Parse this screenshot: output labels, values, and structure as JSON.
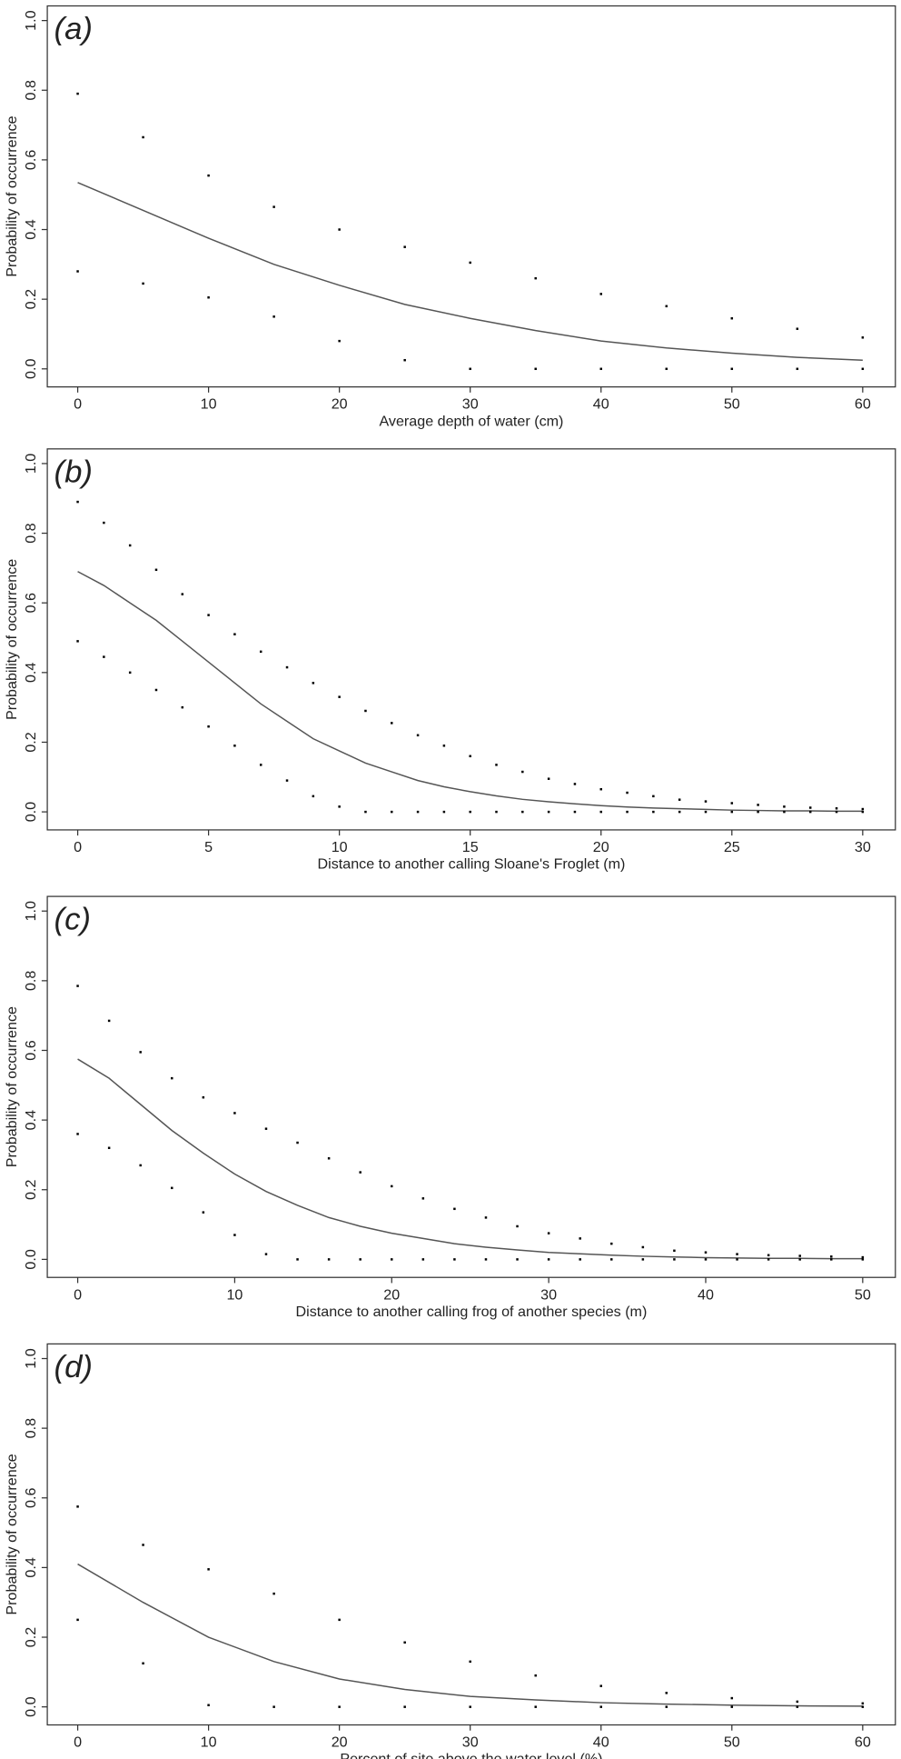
{
  "chart_data": [
    {
      "type": "line",
      "panel_label": "(a)",
      "x_label": "Average depth of water (cm)",
      "y_label": "Probability of occurrence",
      "x": [
        0,
        5,
        10,
        15,
        20,
        25,
        30,
        35,
        40,
        45,
        50,
        55,
        60
      ],
      "series": [
        {
          "style": "line",
          "color": "#555555",
          "values": [
            0.535,
            0.455,
            0.375,
            0.3,
            0.24,
            0.185,
            0.145,
            0.11,
            0.08,
            0.06,
            0.045,
            0.033,
            0.025
          ]
        },
        {
          "style": "points",
          "color": "#000000",
          "values": [
            0.79,
            0.665,
            0.555,
            0.465,
            0.4,
            0.35,
            0.305,
            0.26,
            0.215,
            0.18,
            0.145,
            0.115,
            0.09
          ]
        },
        {
          "style": "points",
          "color": "#000000",
          "values": [
            0.28,
            0.245,
            0.205,
            0.15,
            0.08,
            0.025,
            0,
            0,
            0,
            0,
            0,
            0,
            0
          ]
        }
      ],
      "xlim": [
        0,
        60
      ],
      "xticks": [
        0,
        10,
        20,
        30,
        40,
        50,
        60
      ],
      "ylim": [
        0,
        1
      ],
      "yticks": [
        {
          "value": 0,
          "label": "0.0"
        },
        0.2,
        0.4,
        0.6,
        0.8,
        {
          "value": 1,
          "label": "1.0"
        }
      ]
    },
    {
      "type": "line",
      "panel_label": "(b)",
      "x_label": "Distance to another calling Sloane's Froglet (m)",
      "y_label": "Probability of occurrence",
      "x": [
        0,
        1,
        2,
        3,
        4,
        5,
        6,
        7,
        8,
        9,
        10,
        11,
        12,
        13,
        14,
        15,
        16,
        17,
        18,
        19,
        20,
        21,
        22,
        23,
        24,
        25,
        26,
        27,
        28,
        29,
        30
      ],
      "series": [
        {
          "style": "line",
          "color": "#555555",
          "values": [
            0.69,
            0.65,
            0.6,
            0.55,
            0.49,
            0.43,
            0.37,
            0.31,
            0.26,
            0.21,
            0.175,
            0.14,
            0.115,
            0.09,
            0.072,
            0.058,
            0.046,
            0.036,
            0.029,
            0.023,
            0.018,
            0.014,
            0.011,
            0.009,
            0.007,
            0.005,
            0.004,
            0.003,
            0.003,
            0.002,
            0.002
          ]
        },
        {
          "style": "points",
          "color": "#000000",
          "values": [
            0.89,
            0.83,
            0.765,
            0.695,
            0.625,
            0.565,
            0.51,
            0.46,
            0.415,
            0.37,
            0.33,
            0.29,
            0.255,
            0.22,
            0.19,
            0.16,
            0.135,
            0.115,
            0.095,
            0.08,
            0.065,
            0.055,
            0.045,
            0.035,
            0.03,
            0.025,
            0.02,
            0.015,
            0.012,
            0.01,
            0.008
          ]
        },
        {
          "style": "points",
          "color": "#000000",
          "values": [
            0.49,
            0.445,
            0.4,
            0.35,
            0.3,
            0.245,
            0.19,
            0.135,
            0.09,
            0.045,
            0.015,
            0,
            0,
            0,
            0,
            0,
            0,
            0,
            0,
            0,
            0,
            0,
            0,
            0,
            0,
            0,
            0,
            0,
            0,
            0,
            0
          ]
        }
      ],
      "xlim": [
        0,
        30
      ],
      "xticks": [
        0,
        5,
        10,
        15,
        20,
        25,
        30
      ],
      "ylim": [
        0,
        1
      ],
      "yticks": [
        {
          "value": 0,
          "label": "0.0"
        },
        0.2,
        0.4,
        0.6,
        0.8,
        {
          "value": 1,
          "label": "1.0"
        }
      ]
    },
    {
      "type": "line",
      "panel_label": "(c)",
      "x_label": "Distance to another calling frog of another species (m)",
      "y_label": "Probability of occurrence",
      "x": [
        0,
        2,
        4,
        6,
        8,
        10,
        12,
        14,
        16,
        18,
        20,
        22,
        24,
        26,
        28,
        30,
        32,
        34,
        36,
        38,
        40,
        42,
        44,
        46,
        48,
        50
      ],
      "series": [
        {
          "style": "line",
          "color": "#555555",
          "values": [
            0.575,
            0.52,
            0.445,
            0.37,
            0.305,
            0.245,
            0.195,
            0.155,
            0.12,
            0.095,
            0.075,
            0.06,
            0.045,
            0.035,
            0.027,
            0.02,
            0.016,
            0.012,
            0.009,
            0.007,
            0.005,
            0.004,
            0.003,
            0.003,
            0.002,
            0.002
          ]
        },
        {
          "style": "points",
          "color": "#000000",
          "values": [
            0.785,
            0.685,
            0.595,
            0.52,
            0.465,
            0.42,
            0.375,
            0.335,
            0.29,
            0.25,
            0.21,
            0.175,
            0.145,
            0.12,
            0.095,
            0.075,
            0.06,
            0.045,
            0.035,
            0.025,
            0.02,
            0.015,
            0.012,
            0.01,
            0.008,
            0.006
          ]
        },
        {
          "style": "points",
          "color": "#000000",
          "values": [
            0.36,
            0.32,
            0.27,
            0.205,
            0.135,
            0.07,
            0.015,
            0,
            0,
            0,
            0,
            0,
            0,
            0,
            0,
            0,
            0,
            0,
            0,
            0,
            0,
            0,
            0,
            0,
            0,
            0
          ]
        }
      ],
      "xlim": [
        0,
        50
      ],
      "xticks": [
        0,
        10,
        20,
        30,
        40,
        50
      ],
      "ylim": [
        0,
        1
      ],
      "yticks": [
        {
          "value": 0,
          "label": "0.0"
        },
        0.2,
        0.4,
        0.6,
        0.8,
        {
          "value": 1,
          "label": "1.0"
        }
      ]
    },
    {
      "type": "line",
      "panel_label": "(d)",
      "x_label": "Percent of site above the water level (%)",
      "y_label": "Probability of occurrence",
      "x": [
        0,
        5,
        10,
        15,
        20,
        25,
        30,
        35,
        40,
        45,
        50,
        55,
        60
      ],
      "series": [
        {
          "style": "line",
          "color": "#555555",
          "values": [
            0.41,
            0.3,
            0.2,
            0.13,
            0.08,
            0.05,
            0.03,
            0.02,
            0.012,
            0.008,
            0.005,
            0.003,
            0.002
          ]
        },
        {
          "style": "points",
          "color": "#000000",
          "values": [
            0.575,
            0.465,
            0.395,
            0.325,
            0.25,
            0.185,
            0.13,
            0.09,
            0.06,
            0.04,
            0.025,
            0.015,
            0.01
          ]
        },
        {
          "style": "points",
          "color": "#000000",
          "values": [
            0.25,
            0.125,
            0.005,
            0,
            0,
            0,
            0,
            0,
            0,
            0,
            0,
            0,
            0
          ]
        }
      ],
      "xlim": [
        0,
        60
      ],
      "xticks": [
        0,
        10,
        20,
        30,
        40,
        50,
        60
      ],
      "ylim": [
        0,
        1
      ],
      "yticks": [
        {
          "value": 0,
          "label": "0.0"
        },
        0.2,
        0.4,
        0.6,
        0.8,
        {
          "value": 1,
          "label": "1.0"
        }
      ]
    }
  ]
}
